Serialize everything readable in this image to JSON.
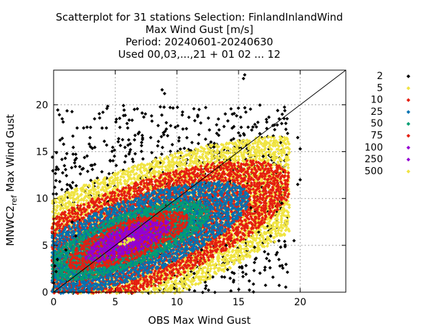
{
  "chart_data": {
    "type": "scatter",
    "title_lines": [
      "Scatterplot for   31 stations Selection: FinlandInlandWind",
      "Max Wind Gust [m/s]",
      "Period: 20240601-20240630",
      "Used 00,03,...,21 + 01 02 ... 12"
    ],
    "xlabel": "OBS Max Wind Gust",
    "ylabel": "MNWC2_ref Max Wind Gust",
    "ylabel_main": "MNWC2",
    "ylabel_sub": "ref",
    "ylabel_rest": " Max Wind Gust",
    "xlim": [
      0,
      23.7
    ],
    "ylim": [
      0,
      23.7
    ],
    "x_ticks": [
      0,
      5,
      10,
      15,
      20
    ],
    "y_ticks": [
      0,
      5,
      10,
      15,
      20
    ],
    "grid": true,
    "diagonal": true,
    "legend_position": "right",
    "series": [
      {
        "name": "2",
        "color": "#000000",
        "maxdist": 10.0
      },
      {
        "name": "5",
        "color": "#f0e442",
        "maxdist": 3.0
      },
      {
        "name": "10",
        "color": "#e51e10",
        "maxdist": 2.3
      },
      {
        "name": "25",
        "color": "#0072b2",
        "maxdist": 1.7
      },
      {
        "name": "50",
        "color": "#009e73",
        "maxdist": 1.15
      },
      {
        "name": "75",
        "color": "#e51e10",
        "maxdist": 0.85
      },
      {
        "name": "100",
        "color": "#9400d3",
        "maxdist": 0.6
      },
      {
        "name": "250",
        "color": "#9400d3",
        "maxdist": 0.35
      },
      {
        "name": "500",
        "color": "#f0e442",
        "maxdist": 0.12
      }
    ],
    "outliers": [
      [
        15.5,
        23.2
      ],
      [
        15.4,
        22.8
      ],
      [
        8.8,
        21.6
      ],
      [
        9.0,
        21.2
      ],
      [
        4.0,
        19.2
      ],
      [
        11.8,
        19.5
      ],
      [
        14.5,
        19.0
      ],
      [
        18.3,
        18.5
      ],
      [
        18.5,
        18.0
      ],
      [
        19.8,
        16.5
      ],
      [
        20.0,
        15.3
      ],
      [
        20.0,
        12.0
      ],
      [
        19.8,
        11.5
      ],
      [
        18.5,
        9.5
      ],
      [
        17.6,
        6.0
      ],
      [
        19.5,
        5.5
      ],
      [
        16.3,
        4.8
      ],
      [
        1.0,
        4.5
      ],
      [
        0.3,
        3.5
      ],
      [
        0.1,
        2.8
      ],
      [
        0.2,
        2.2
      ],
      [
        0.0,
        1.0
      ],
      [
        4.6,
        14.0
      ],
      [
        6.4,
        14.2
      ],
      [
        2.4,
        13.2
      ],
      [
        13.0,
        15.5
      ],
      [
        15.0,
        17.0
      ],
      [
        17.0,
        14.5
      ],
      [
        16.0,
        9.0
      ],
      [
        14.0,
        5.0
      ],
      [
        12.0,
        4.5
      ],
      [
        1.5,
        7.5
      ],
      [
        1.8,
        6.0
      ],
      [
        9.8,
        0.4
      ],
      [
        11.4,
        2.0
      ]
    ]
  }
}
